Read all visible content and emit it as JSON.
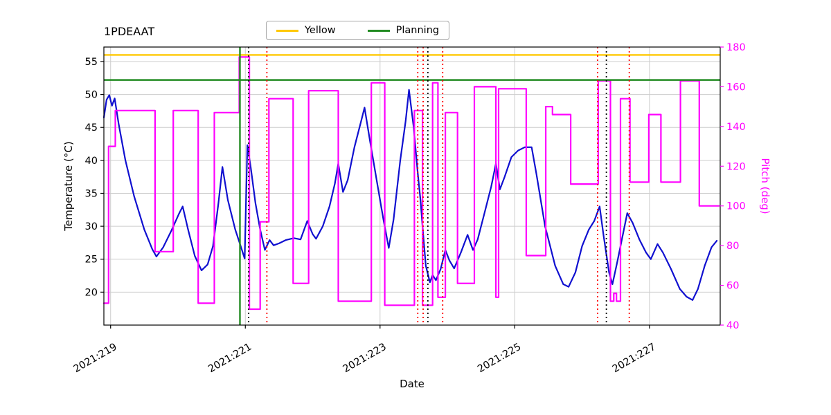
{
  "title": "1PDEAAT",
  "legend": {
    "items": [
      {
        "label": "Yellow",
        "color": "#ffc800"
      },
      {
        "label": "Planning",
        "color": "#228b22"
      }
    ]
  },
  "axes": {
    "xlabel": "Date",
    "ylabel_left": "Temperature (°C)",
    "ylabel_right": "Pitch (deg)",
    "xlim": [
      218.9,
      228.05
    ],
    "ylim_left": [
      15,
      57.2
    ],
    "ylim_right": [
      40,
      180
    ],
    "x_ticks": [
      {
        "value": 219,
        "label": "2021:219"
      },
      {
        "value": 221,
        "label": "2021:221"
      },
      {
        "value": 223,
        "label": "2021:223"
      },
      {
        "value": 225,
        "label": "2021:225"
      },
      {
        "value": 227,
        "label": "2021:227"
      }
    ],
    "y_ticks_left": [
      20,
      25,
      30,
      35,
      40,
      45,
      50,
      55
    ],
    "y_ticks_right": [
      40,
      60,
      80,
      100,
      120,
      140,
      160,
      180
    ],
    "colors": {
      "left_axis": "#000000",
      "right_axis": "#ff00ff",
      "grid": "#cccccc"
    }
  },
  "chart_data": {
    "type": "line",
    "title": "1PDEAAT",
    "xlabel": "Date",
    "grid": true,
    "series": [
      {
        "name": "temperature",
        "axis": "left",
        "style": "line",
        "color": "#1010d0",
        "points": [
          [
            218.9,
            46.5
          ],
          [
            218.94,
            49.2
          ],
          [
            218.98,
            49.9
          ],
          [
            219.02,
            48.3
          ],
          [
            219.06,
            49.4
          ],
          [
            219.12,
            45.5
          ],
          [
            219.22,
            40.0
          ],
          [
            219.35,
            34.5
          ],
          [
            219.5,
            29.5
          ],
          [
            219.62,
            26.5
          ],
          [
            219.68,
            25.4
          ],
          [
            219.78,
            26.8
          ],
          [
            219.9,
            29.3
          ],
          [
            220.02,
            32.0
          ],
          [
            220.07,
            33.0
          ],
          [
            220.15,
            29.5
          ],
          [
            220.25,
            25.5
          ],
          [
            220.35,
            23.3
          ],
          [
            220.44,
            24.2
          ],
          [
            220.52,
            27.0
          ],
          [
            220.6,
            33.5
          ],
          [
            220.66,
            39.0
          ],
          [
            220.74,
            34.0
          ],
          [
            220.85,
            29.5
          ],
          [
            220.93,
            27.0
          ],
          [
            220.99,
            25.1
          ],
          [
            221.03,
            42.3
          ],
          [
            221.08,
            39.0
          ],
          [
            221.15,
            33.5
          ],
          [
            221.22,
            29.5
          ],
          [
            221.29,
            26.4
          ],
          [
            221.36,
            27.9
          ],
          [
            221.42,
            27.1
          ],
          [
            221.5,
            27.4
          ],
          [
            221.6,
            27.9
          ],
          [
            221.72,
            28.2
          ],
          [
            221.82,
            28.0
          ],
          [
            221.92,
            30.8
          ],
          [
            222.0,
            28.8
          ],
          [
            222.05,
            28.1
          ],
          [
            222.15,
            30.0
          ],
          [
            222.25,
            33.0
          ],
          [
            222.33,
            36.5
          ],
          [
            222.38,
            39.5
          ],
          [
            222.45,
            35.2
          ],
          [
            222.52,
            37.0
          ],
          [
            222.62,
            42.0
          ],
          [
            222.72,
            46.0
          ],
          [
            222.77,
            48.0
          ],
          [
            222.85,
            43.0
          ],
          [
            222.95,
            37.0
          ],
          [
            223.05,
            31.0
          ],
          [
            223.13,
            26.7
          ],
          [
            223.2,
            31.0
          ],
          [
            223.3,
            40.0
          ],
          [
            223.38,
            46.0
          ],
          [
            223.43,
            50.7
          ],
          [
            223.5,
            45.0
          ],
          [
            223.56,
            38.0
          ],
          [
            223.6,
            34.0
          ],
          [
            223.63,
            30.0
          ],
          [
            223.68,
            24.0
          ],
          [
            223.74,
            21.5
          ],
          [
            223.78,
            22.6
          ],
          [
            223.83,
            21.8
          ],
          [
            223.9,
            23.5
          ],
          [
            223.97,
            26.4
          ],
          [
            224.03,
            24.8
          ],
          [
            224.1,
            23.6
          ],
          [
            224.2,
            26.0
          ],
          [
            224.3,
            28.7
          ],
          [
            224.38,
            26.4
          ],
          [
            224.45,
            28.0
          ],
          [
            224.55,
            32.0
          ],
          [
            224.65,
            36.0
          ],
          [
            224.72,
            39.5
          ],
          [
            224.78,
            35.6
          ],
          [
            224.85,
            37.5
          ],
          [
            224.95,
            40.5
          ],
          [
            225.05,
            41.5
          ],
          [
            225.15,
            42.0
          ],
          [
            225.25,
            42.0
          ],
          [
            225.32,
            38.0
          ],
          [
            225.45,
            30.0
          ],
          [
            225.6,
            24.0
          ],
          [
            225.72,
            21.2
          ],
          [
            225.8,
            20.8
          ],
          [
            225.9,
            23.0
          ],
          [
            226.0,
            27.0
          ],
          [
            226.1,
            29.5
          ],
          [
            226.18,
            30.8
          ],
          [
            226.26,
            33.0
          ],
          [
            226.32,
            28.5
          ],
          [
            226.4,
            23.0
          ],
          [
            226.45,
            21.2
          ],
          [
            226.52,
            24.5
          ],
          [
            226.6,
            28.5
          ],
          [
            226.67,
            32.0
          ],
          [
            226.75,
            30.5
          ],
          [
            226.85,
            28.0
          ],
          [
            226.95,
            26.0
          ],
          [
            227.02,
            25.0
          ],
          [
            227.12,
            27.3
          ],
          [
            227.2,
            26.0
          ],
          [
            227.32,
            23.5
          ],
          [
            227.45,
            20.5
          ],
          [
            227.55,
            19.3
          ],
          [
            227.64,
            18.8
          ],
          [
            227.72,
            20.5
          ],
          [
            227.82,
            24.0
          ],
          [
            227.92,
            26.8
          ],
          [
            228.0,
            27.8
          ]
        ]
      },
      {
        "name": "pitch",
        "axis": "right",
        "style": "step",
        "color": "#ff00ff",
        "points": [
          [
            218.9,
            51
          ],
          [
            218.97,
            130
          ],
          [
            219.07,
            148
          ],
          [
            219.66,
            77
          ],
          [
            219.93,
            148
          ],
          [
            220.3,
            51
          ],
          [
            220.54,
            147
          ],
          [
            220.91,
            175
          ],
          [
            221.06,
            48
          ],
          [
            221.22,
            92
          ],
          [
            221.35,
            154
          ],
          [
            221.71,
            61
          ],
          [
            221.94,
            158
          ],
          [
            222.38,
            52
          ],
          [
            222.87,
            162
          ],
          [
            223.07,
            50
          ],
          [
            223.51,
            148
          ],
          [
            223.63,
            50
          ],
          [
            223.78,
            162
          ],
          [
            223.86,
            54
          ],
          [
            223.97,
            147
          ],
          [
            224.15,
            61
          ],
          [
            224.4,
            160
          ],
          [
            224.72,
            54
          ],
          [
            224.76,
            159
          ],
          [
            225.17,
            75
          ],
          [
            225.46,
            150
          ],
          [
            225.56,
            146
          ],
          [
            225.83,
            111
          ],
          [
            226.24,
            163
          ],
          [
            226.42,
            52
          ],
          [
            226.47,
            56
          ],
          [
            226.51,
            52
          ],
          [
            226.57,
            154
          ],
          [
            226.71,
            112
          ],
          [
            226.99,
            146
          ],
          [
            227.17,
            112
          ],
          [
            227.46,
            163
          ],
          [
            227.74,
            100
          ],
          [
            228.03,
            100
          ]
        ]
      }
    ],
    "hlines": [
      {
        "name": "yellow-limit",
        "value": 56.0,
        "axis": "left",
        "color": "#ffc800",
        "style": "solid"
      },
      {
        "name": "planning-limit",
        "value": 52.2,
        "axis": "left",
        "color": "#228b22",
        "style": "solid"
      }
    ],
    "vlines": [
      {
        "x": 220.92,
        "color": "#228b22",
        "style": "solid",
        "name": "green-solid-1"
      },
      {
        "x": 221.05,
        "color": "#000000",
        "style": "dotted",
        "name": "black-dotted-1"
      },
      {
        "x": 221.32,
        "color": "#ff0000",
        "style": "dotted",
        "name": "red-dotted-1"
      },
      {
        "x": 223.56,
        "color": "#ff0000",
        "style": "dotted",
        "name": "red-dotted-2"
      },
      {
        "x": 223.64,
        "color": "#ff0000",
        "style": "dotted",
        "name": "red-dotted-3"
      },
      {
        "x": 223.71,
        "color": "#000000",
        "style": "dotted",
        "name": "black-dotted-2"
      },
      {
        "x": 223.93,
        "color": "#ff0000",
        "style": "dotted",
        "name": "red-dotted-4"
      },
      {
        "x": 226.23,
        "color": "#ff0000",
        "style": "dotted",
        "name": "red-dotted-5"
      },
      {
        "x": 226.36,
        "color": "#000000",
        "style": "dotted",
        "name": "black-dotted-3"
      },
      {
        "x": 226.7,
        "color": "#ff0000",
        "style": "dotted",
        "name": "red-dotted-6"
      }
    ]
  }
}
